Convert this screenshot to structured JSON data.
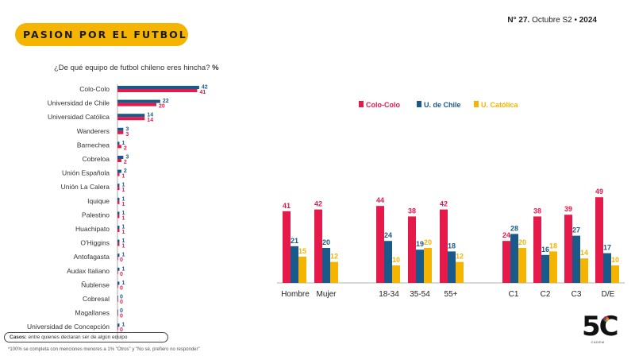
{
  "header": {
    "title": "PASION POR EL FUTBOL",
    "issue_prefix": "N°",
    "issue_number": "27.",
    "issue_date": "Octubre S2 •",
    "issue_year": "2024"
  },
  "question": "¿De qué equipo de futbol chileno eres hincha?",
  "question_unit": "%",
  "footer": {
    "cases_label": "Casos:",
    "cases_text": "entre quienes declaran ser de algún equipo",
    "footnote": "*100% se completa con menciones menores a 1% \"Otros\" y \"No sé, prefiero no responder\""
  },
  "logo": {
    "text": "5C",
    "sub": "CADEM"
  },
  "colors": {
    "series_a": "#e6194b",
    "series_b": "#1a5a8a",
    "series_c": "#f5b400",
    "accent": "#f5b400"
  },
  "chart_data": [
    {
      "type": "bar",
      "orientation": "horizontal",
      "categories": [
        "Colo-Colo",
        "Universidad de Chile",
        "Universidad Católica",
        "Wanderers",
        "Barnechea",
        "Cobreloa",
        "Unión Española",
        "Unión La Calera",
        "Iquique",
        "Palestino",
        "Huachipato",
        "O'Higgins",
        "Antofagasta",
        "Audax Italiano",
        "Ñublense",
        "Cobresal",
        "Magallanes",
        "Universidad de Concepción"
      ],
      "series": [
        {
          "values": [
            42,
            22,
            14,
            3,
            1,
            3,
            2,
            1,
            1,
            1,
            1,
            1,
            1,
            1,
            1,
            0,
            0,
            1
          ]
        },
        {
          "values": [
            41,
            20,
            14,
            3,
            2,
            2,
            1,
            1,
            1,
            1,
            1,
            1,
            0,
            0,
            0,
            0,
            0,
            0
          ]
        }
      ]
    },
    {
      "type": "bar",
      "categories": [
        "Hombre",
        "Mujer",
        "18-34",
        "35-54",
        "55+",
        "C1",
        "C2",
        "C3",
        "D/E"
      ],
      "series": [
        {
          "name": "Colo-Colo",
          "values": [
            41,
            42,
            44,
            38,
            42,
            24,
            38,
            39,
            49
          ]
        },
        {
          "name": "U. de Chile",
          "values": [
            21,
            20,
            24,
            19,
            18,
            28,
            16,
            27,
            17
          ]
        },
        {
          "name": "U. Católica",
          "values": [
            15,
            12,
            10,
            20,
            12,
            20,
            18,
            14,
            10
          ]
        }
      ],
      "legend": "top"
    }
  ]
}
